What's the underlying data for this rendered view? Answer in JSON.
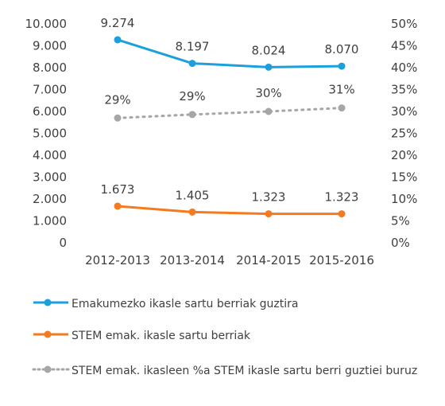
{
  "chart_data": {
    "type": "line",
    "categories": [
      "2012-2013",
      "2013-2014",
      "2014-2015",
      "2015-2016"
    ],
    "series": [
      {
        "name": "Emakumezko ikasle sartu berriak guztira",
        "axis": "left",
        "values": [
          9274,
          8197,
          8024,
          8070
        ],
        "labels": [
          "9.274",
          "8.197",
          "8.024",
          "8.070"
        ],
        "color": "#1ca0dc",
        "style": "solid"
      },
      {
        "name": "STEM emak. ikasle sartu berriak",
        "axis": "left",
        "values": [
          1673,
          1405,
          1323,
          1323
        ],
        "labels": [
          "1.673",
          "1.405",
          "1.323",
          "1.323"
        ],
        "color": "#f47b20",
        "style": "solid"
      },
      {
        "name": "STEM emak. ikasleen %a STEM ikasle sartu berri guztiei buruz",
        "axis": "right",
        "values": [
          0.285,
          0.293,
          0.3,
          0.308
        ],
        "labels": [
          "29%",
          "29%",
          "30%",
          "31%"
        ],
        "color": "#a6a6a6",
        "style": "dotted"
      }
    ],
    "y_left": {
      "ylim": [
        0,
        10000
      ],
      "ticks": [
        "0",
        "1.000",
        "2.000",
        "3.000",
        "4.000",
        "5.000",
        "6.000",
        "7.000",
        "8.000",
        "9.000",
        "10.000"
      ]
    },
    "y_right": {
      "ylim": [
        0,
        0.5
      ],
      "ticks": [
        "0%",
        "5%",
        "10%",
        "15%",
        "20%",
        "25%",
        "30%",
        "35%",
        "40%",
        "45%",
        "50%"
      ]
    },
    "legend_position": "bottom",
    "grid": false
  }
}
